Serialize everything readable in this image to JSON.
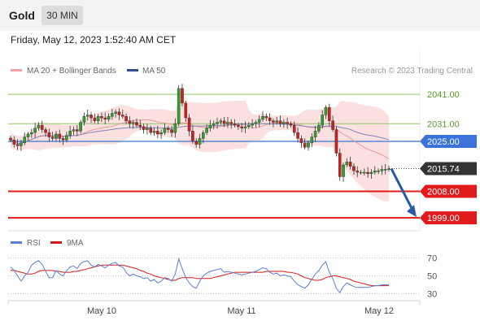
{
  "header": {
    "title": "Gold",
    "timeframe": "30 MIN",
    "datetime": "Friday, May 12, 2023 1:52:40 AM CET"
  },
  "legend": {
    "ma20": "MA 20 + Bollinger Bands",
    "ma50": "MA 50",
    "copyright": "Research © 2023 Trading Central"
  },
  "rsi_legend": {
    "rsi": "RSI",
    "ma9": "9MA"
  },
  "colors": {
    "up_candle": "#2ea02e",
    "down_candle": "#cc1f1f",
    "bollinger_fill": "#fbe0e0",
    "ma20": "#e89a9a",
    "ma50": "#7f86b8",
    "support": "#e01b1b",
    "pivot": "#3b73d8",
    "resistance": "#8cc665",
    "last_price": "#333333",
    "arrow": "#2a5aa6",
    "rsi": "#5b7fd6",
    "rsi_ma": "#d11a1a"
  },
  "chart_data": [
    {
      "type": "candlestick",
      "title": "Gold",
      "timeframe": "30 MIN",
      "xlabel": "",
      "ylabel": "",
      "ylim": [
        1996,
        2046
      ],
      "x_tick_labels": [
        "May 10",
        "May 11",
        "May 12"
      ],
      "levels": [
        {
          "label": "2041.00",
          "value": 2041.0,
          "kind": "resistance"
        },
        {
          "label": "2031.00",
          "value": 2031.0,
          "kind": "resistance"
        },
        {
          "label": "2025.00",
          "value": 2025.0,
          "kind": "pivot"
        },
        {
          "label": "2015.74",
          "value": 2015.74,
          "kind": "last"
        },
        {
          "label": "2008.00",
          "value": 2008.0,
          "kind": "support"
        },
        {
          "label": "1999.00",
          "value": 1999.0,
          "kind": "support"
        }
      ],
      "last_price": 2015.74,
      "forecast_arrow": {
        "from": 2015.74,
        "to": 1999.0
      },
      "close": [
        2025.5,
        2024.0,
        2023.5,
        2024.5,
        2026.5,
        2027.5,
        2028.0,
        2029.5,
        2030.5,
        2029.0,
        2028.0,
        2026.5,
        2026.0,
        2027.5,
        2026.0,
        2025.5,
        2027.0,
        2028.5,
        2029.0,
        2028.5,
        2031.5,
        2033.5,
        2034.0,
        2033.0,
        2032.0,
        2033.5,
        2033.0,
        2032.5,
        2033.5,
        2034.5,
        2035.0,
        2034.0,
        2033.5,
        2032.0,
        2031.0,
        2031.5,
        2030.5,
        2030.0,
        2029.0,
        2029.5,
        2028.0,
        2028.5,
        2027.5,
        2028.0,
        2029.5,
        2029.0,
        2028.0,
        2031.0,
        2043.0,
        2038.0,
        2033.0,
        2028.5,
        2025.0,
        2024.0,
        2026.0,
        2028.0,
        2029.5,
        2030.5,
        2031.0,
        2031.5,
        2032.0,
        2031.0,
        2031.5,
        2031.0,
        2030.5,
        2030.0,
        2029.5,
        2030.0,
        2030.5,
        2031.0,
        2031.5,
        2032.5,
        2033.5,
        2033.0,
        2032.0,
        2031.5,
        2032.0,
        2031.0,
        2031.5,
        2031.0,
        2030.5,
        2028.0,
        2026.0,
        2024.5,
        2023.0,
        2024.5,
        2026.5,
        2028.5,
        2030.5,
        2034.0,
        2036.5,
        2032.0,
        2029.0,
        2021.0,
        2013.0,
        2017.0,
        2018.0,
        2016.5,
        2015.0,
        2014.5,
        2014.5,
        2014.5,
        2014.0,
        2014.5,
        2015.0,
        2015.0,
        2015.5,
        2015.5,
        2015.7
      ]
    },
    {
      "type": "line",
      "title": "",
      "ylim": [
        24,
        76
      ],
      "yticks": [
        30,
        50,
        70
      ],
      "series": [
        {
          "name": "RSI",
          "values": [
            60,
            56,
            50,
            44,
            50,
            54,
            62,
            65,
            67,
            63,
            55,
            48,
            48,
            56,
            52,
            50,
            56,
            60,
            61,
            58,
            64,
            66,
            67,
            62,
            60,
            63,
            61,
            59,
            62,
            64,
            65,
            61,
            60,
            54,
            50,
            52,
            50,
            49,
            47,
            48,
            44,
            46,
            42,
            44,
            48,
            47,
            44,
            52,
            69,
            58,
            48,
            42,
            38,
            36,
            44,
            50,
            53,
            55,
            56,
            57,
            58,
            54,
            55,
            54,
            53,
            52,
            51,
            52,
            53,
            54,
            55,
            57,
            59,
            58,
            54,
            52,
            53,
            50,
            51,
            50,
            49,
            44,
            40,
            38,
            36,
            40,
            46,
            52,
            56,
            62,
            66,
            54,
            47,
            36,
            31,
            38,
            42,
            40,
            38,
            37,
            37,
            37,
            37,
            38,
            39,
            39,
            40,
            40,
            40
          ]
        },
        {
          "name": "9MA",
          "values": [
            56,
            56,
            55,
            54,
            53,
            52,
            52,
            53,
            55,
            56,
            56,
            56,
            56,
            55,
            55,
            54,
            54,
            54,
            55,
            55,
            56,
            57,
            58,
            59,
            60,
            61,
            62,
            62,
            62,
            62,
            62,
            62,
            62,
            61,
            60,
            59,
            58,
            56,
            55,
            53,
            52,
            50,
            49,
            48,
            47,
            46,
            45,
            45,
            47,
            48,
            48,
            48,
            48,
            47,
            47,
            47,
            47,
            47,
            48,
            49,
            50,
            51,
            52,
            53,
            54,
            54,
            54,
            54,
            54,
            54,
            54,
            54,
            54,
            55,
            55,
            55,
            55,
            55,
            55,
            54,
            54,
            53,
            52,
            50,
            48,
            47,
            46,
            45,
            45,
            46,
            48,
            49,
            50,
            50,
            49,
            48,
            47,
            46,
            44,
            43,
            42,
            41,
            40,
            39,
            39,
            39,
            39,
            39,
            39
          ]
        }
      ]
    }
  ]
}
